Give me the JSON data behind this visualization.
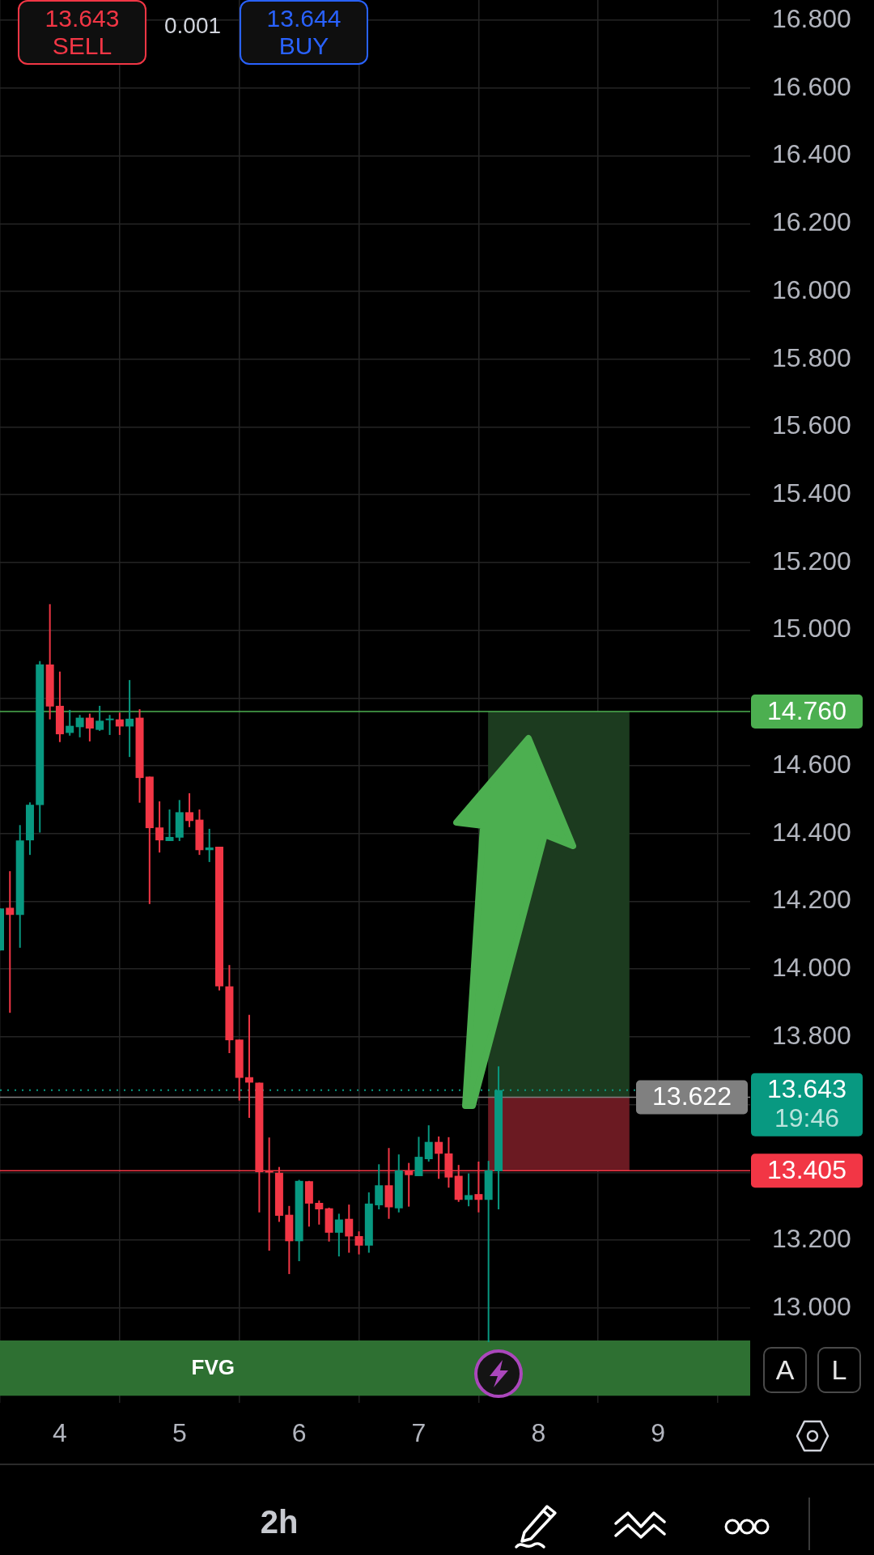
{
  "chart_data": {
    "type": "candlestick",
    "x": [
      3.5,
      3.583,
      3.667,
      3.75,
      3.833,
      3.917,
      4,
      4.083,
      4.167,
      4.25,
      4.333,
      4.417,
      4.5,
      4.583,
      4.667,
      4.75,
      4.833,
      4.917,
      5,
      5.083,
      5.167,
      5.25,
      5.333,
      5.417,
      5.5,
      5.583,
      5.667,
      5.75,
      5.833,
      5.917,
      6,
      6.083,
      6.167,
      6.25,
      6.333,
      6.417,
      6.5,
      6.583,
      6.667,
      6.75,
      6.833,
      6.917,
      7,
      7.083,
      7.167,
      7.25,
      7.333,
      7.417,
      7.5,
      7.583,
      7.667
    ],
    "ohlc": [
      [
        14.055,
        14.179,
        14.055,
        14.179
      ],
      [
        14.181,
        14.289,
        13.871,
        14.16
      ],
      [
        14.16,
        14.425,
        14.063,
        14.38
      ],
      [
        14.38,
        14.492,
        14.337,
        14.485
      ],
      [
        14.484,
        14.909,
        14.403,
        14.899
      ],
      [
        14.899,
        15.077,
        14.737,
        14.775
      ],
      [
        14.777,
        14.878,
        14.67,
        14.693
      ],
      [
        14.697,
        14.765,
        14.689,
        14.718
      ],
      [
        14.714,
        14.75,
        14.684,
        14.742
      ],
      [
        14.742,
        14.754,
        14.672,
        14.71
      ],
      [
        14.706,
        14.777,
        14.703,
        14.733
      ],
      [
        14.736,
        14.75,
        14.691,
        14.738
      ],
      [
        14.737,
        14.757,
        14.691,
        14.716
      ],
      [
        14.716,
        14.853,
        14.626,
        14.739
      ],
      [
        14.742,
        14.767,
        14.491,
        14.564
      ],
      [
        14.568,
        14.568,
        14.192,
        14.416
      ],
      [
        14.418,
        14.495,
        14.344,
        14.38
      ],
      [
        14.378,
        14.471,
        14.378,
        14.39
      ],
      [
        14.388,
        14.499,
        14.378,
        14.463
      ],
      [
        14.463,
        14.519,
        14.419,
        14.437
      ],
      [
        14.441,
        14.471,
        14.337,
        14.351
      ],
      [
        14.351,
        14.414,
        14.316,
        14.359
      ],
      [
        14.361,
        14.361,
        13.937,
        13.949
      ],
      [
        13.949,
        14.012,
        13.752,
        13.79
      ],
      [
        13.792,
        13.792,
        13.612,
        13.679
      ],
      [
        13.681,
        13.865,
        13.561,
        13.665
      ],
      [
        13.665,
        13.665,
        13.282,
        13.401
      ],
      [
        13.403,
        13.503,
        13.169,
        13.401
      ],
      [
        13.399,
        13.416,
        13.254,
        13.272
      ],
      [
        13.275,
        13.301,
        13.1,
        13.197
      ],
      [
        13.197,
        13.378,
        13.138,
        13.375
      ],
      [
        13.374,
        13.375,
        13.24,
        13.308
      ],
      [
        13.31,
        13.317,
        13.246,
        13.291
      ],
      [
        13.294,
        13.296,
        13.196,
        13.222
      ],
      [
        13.222,
        13.278,
        13.152,
        13.261
      ],
      [
        13.263,
        13.305,
        13.163,
        13.211
      ],
      [
        13.212,
        13.226,
        13.158,
        13.184
      ],
      [
        13.184,
        13.341,
        13.163,
        13.308
      ],
      [
        13.303,
        13.424,
        13.291,
        13.362
      ],
      [
        13.362,
        13.472,
        13.263,
        13.297
      ],
      [
        13.294,
        13.453,
        13.282,
        13.406
      ],
      [
        13.406,
        13.428,
        13.299,
        13.392
      ],
      [
        13.389,
        13.505,
        13.389,
        13.446
      ],
      [
        13.439,
        13.539,
        13.432,
        13.49
      ],
      [
        13.49,
        13.506,
        13.381,
        13.455
      ],
      [
        13.456,
        13.504,
        13.355,
        13.385
      ],
      [
        13.39,
        13.422,
        13.313,
        13.319
      ],
      [
        13.319,
        13.397,
        13.3,
        13.333
      ],
      [
        13.336,
        13.432,
        13.282,
        13.319
      ],
      [
        13.319,
        13.434,
        12.899,
        13.406
      ],
      [
        13.403,
        13.713,
        13.291,
        13.643
      ]
    ],
    "series": [
      {
        "type": "bar",
        "x": [
          8.17
        ],
        "base": [
          13.622
        ],
        "values": [
          1.138
        ],
        "color": "#1c3b1f"
      },
      {
        "type": "bar",
        "x": [
          8.17
        ],
        "base": [
          13.405
        ],
        "values": [
          0.217
        ],
        "color": "#6b1a22"
      }
    ],
    "xlim": [
      3.5,
      9.77
    ],
    "xticks": [
      4,
      5,
      6,
      7,
      8,
      9
    ],
    "ylim": [
      12.72,
      16.86
    ],
    "yticks": [
      {
        "value": 13,
        "label": "13.000"
      },
      {
        "value": 13.2,
        "label": "13.200"
      },
      {
        "value": 13.4,
        "label": null
      },
      {
        "value": 13.6,
        "label": null
      },
      {
        "value": 13.8,
        "label": "13.800"
      },
      {
        "value": 14,
        "label": "14.000"
      },
      {
        "value": 14.2,
        "label": "14.200"
      },
      {
        "value": 14.4,
        "label": "14.400"
      },
      {
        "value": 14.6,
        "label": "14.600"
      },
      {
        "value": 14.8,
        "label": null
      },
      {
        "value": 15,
        "label": "15.000"
      },
      {
        "value": 15.2,
        "label": "15.200"
      },
      {
        "value": 15.4,
        "label": "15.400"
      },
      {
        "value": 15.6,
        "label": "15.600"
      },
      {
        "value": 15.8,
        "label": "15.800"
      },
      {
        "value": 16,
        "label": "16.000"
      },
      {
        "value": 16.2,
        "label": "16.200"
      },
      {
        "value": 16.4,
        "label": "16.400"
      },
      {
        "value": 16.6,
        "label": "16.600"
      },
      {
        "value": 16.8,
        "label": "16.800"
      }
    ],
    "grid": true,
    "ref_lines": [
      {
        "axis": "y",
        "value": 14.76,
        "label": "14.760",
        "color": "#4caf50"
      },
      {
        "axis": "y",
        "value": 13.643,
        "label": "13.643\n19:46",
        "color": "#089981",
        "line_style": "dotted"
      },
      {
        "axis": "y",
        "value": 13.622,
        "label": "13.622",
        "color": "#808080"
      },
      {
        "axis": "y",
        "value": 13.405,
        "label": "13.405",
        "color": "#f23645"
      }
    ],
    "bands": [
      {
        "axis": "y",
        "from": 12.741,
        "to": 12.904,
        "label": "FVG",
        "color": "#2e7032"
      }
    ],
    "annotations": [
      "13.643",
      "SELL",
      "0.001",
      "13.644",
      "BUY",
      "2h",
      "A",
      "L"
    ]
  }
}
